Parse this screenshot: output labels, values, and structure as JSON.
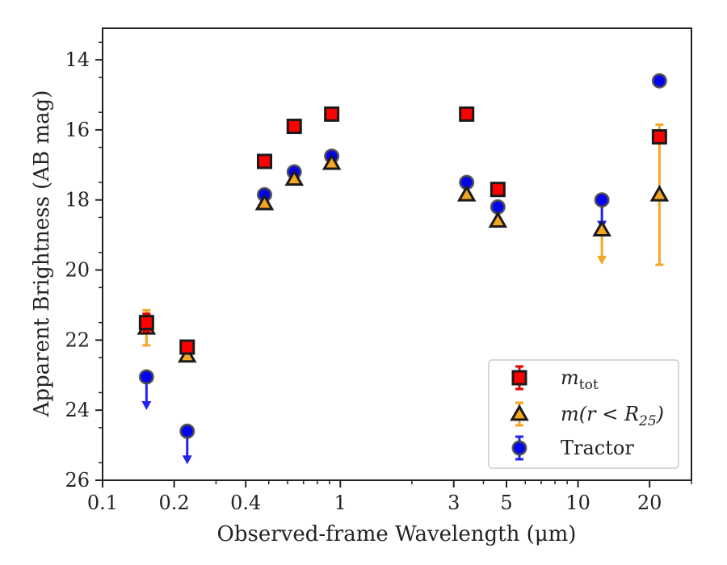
{
  "chart_data": {
    "type": "scatter",
    "xlabel": "Observed-frame Wavelength (μm)",
    "ylabel": "Apparent Brightness (AB mag)",
    "xscale": "log",
    "xlim": [
      0.1,
      30
    ],
    "ylim": [
      26,
      13.1
    ],
    "y_inverted": true,
    "grid": false,
    "legend_position": "lower-right",
    "x_ticks": [
      {
        "value": 0.1,
        "label": "0.1"
      },
      {
        "value": 0.2,
        "label": "0.2"
      },
      {
        "value": 0.4,
        "label": "0.4"
      },
      {
        "value": 1,
        "label": "1"
      },
      {
        "value": 3,
        "label": "3"
      },
      {
        "value": 5,
        "label": "5"
      },
      {
        "value": 10,
        "label": "10"
      },
      {
        "value": 20,
        "label": "20"
      }
    ],
    "y_ticks": [
      {
        "value": 14,
        "label": "14"
      },
      {
        "value": 16,
        "label": "16"
      },
      {
        "value": 18,
        "label": "18"
      },
      {
        "value": 20,
        "label": "20"
      },
      {
        "value": 22,
        "label": "22"
      },
      {
        "value": 24,
        "label": "24"
      },
      {
        "value": 26,
        "label": "26"
      }
    ],
    "series": [
      {
        "name": "m_tot",
        "legend_main": "m",
        "legend_sub": "tot",
        "marker": "square",
        "fill": "#ff0000",
        "edge": "#1a1a1a",
        "error_color": "#e00000",
        "points": [
          {
            "x": 0.153,
            "y": 21.5,
            "err": 0.25
          },
          {
            "x": 0.227,
            "y": 22.2,
            "err": 0.1
          },
          {
            "x": 0.48,
            "y": 16.9
          },
          {
            "x": 0.64,
            "y": 15.9
          },
          {
            "x": 0.92,
            "y": 15.55
          },
          {
            "x": 3.4,
            "y": 15.55
          },
          {
            "x": 4.6,
            "y": 17.7
          },
          {
            "x": 22,
            "y": 16.2,
            "err": 0.15
          }
        ]
      },
      {
        "name": "m(r < R25)",
        "legend_main": "m(r < R",
        "legend_sub": "25",
        "legend_close": ")",
        "marker": "triangle",
        "fill": "#f5a623",
        "edge": "#1a1a1a",
        "error_color": "#f5a623",
        "points": [
          {
            "x": 0.153,
            "y": 21.65,
            "err_low": 0.5,
            "err_high": 0.5
          },
          {
            "x": 0.227,
            "y": 22.45
          },
          {
            "x": 0.48,
            "y": 18.1
          },
          {
            "x": 0.64,
            "y": 17.4
          },
          {
            "x": 0.92,
            "y": 16.95
          },
          {
            "x": 3.4,
            "y": 17.85
          },
          {
            "x": 4.6,
            "y": 18.6
          },
          {
            "x": 12.6,
            "y": 18.85,
            "upper_limit_to": 19.8
          },
          {
            "x": 22,
            "y": 17.85,
            "err_low": 2.0,
            "err_high": 2.0
          }
        ]
      },
      {
        "name": "Tractor",
        "legend_main": "Tractor",
        "marker": "circle",
        "fill": "#0000ff",
        "edge": "#444444",
        "error_color": "#2222ee",
        "points": [
          {
            "x": 0.153,
            "y": 23.05,
            "upper_limit_to": 23.95
          },
          {
            "x": 0.227,
            "y": 24.6,
            "upper_limit_to": 25.5
          },
          {
            "x": 0.48,
            "y": 17.85
          },
          {
            "x": 0.64,
            "y": 17.2
          },
          {
            "x": 0.92,
            "y": 16.75
          },
          {
            "x": 3.4,
            "y": 17.5
          },
          {
            "x": 4.6,
            "y": 18.2
          },
          {
            "x": 12.6,
            "y": 18.0,
            "upper_limit_to": 18.8
          },
          {
            "x": 22,
            "y": 14.6
          }
        ]
      }
    ]
  }
}
